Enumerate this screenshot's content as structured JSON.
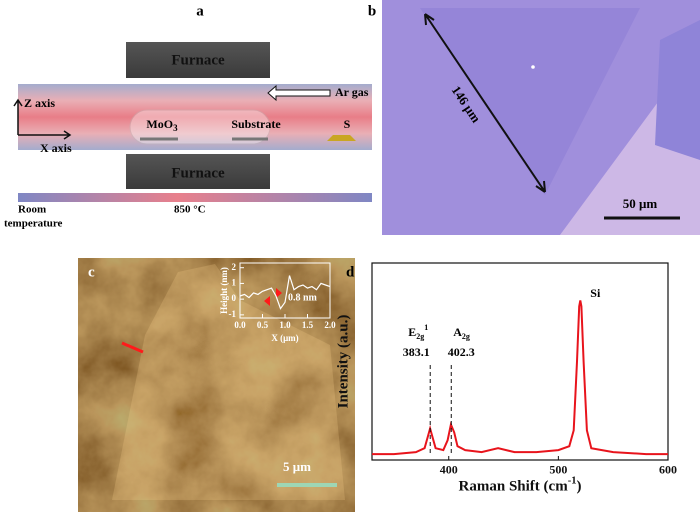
{
  "panel_a": {
    "label": "a",
    "furnace_top": "Furnace",
    "furnace_bottom": "Furnace",
    "gas": "Ar gas",
    "z_axis": "Z axis",
    "x_axis": "X axis",
    "precursor": {
      "base": "MoO",
      "sub": "3"
    },
    "substrate": "Substrate",
    "sulfur": "S",
    "room_temperature": [
      "Room",
      "temperature"
    ],
    "hot_zone": "850 °C"
  },
  "panel_b": {
    "label": "b",
    "flake_size": "146 μm",
    "scale_bar": "50 μm"
  },
  "panel_c": {
    "label": "c",
    "scale_bar": "5 μm"
  },
  "panel_d": {
    "label": "d"
  },
  "chart_data": [
    {
      "type": "line",
      "color": "#ffffff",
      "x_label": "X (μm)",
      "y_label": "Height (nm)",
      "annotation": "0.8 nm",
      "x": [
        0,
        0.1,
        0.2,
        0.3,
        0.4,
        0.5,
        0.6,
        0.7,
        0.8,
        0.9,
        1.0,
        1.1,
        1.2,
        1.3,
        1.4,
        1.5,
        1.6,
        1.7,
        1.8,
        1.9,
        2.0
      ],
      "values": [
        0.2,
        0.3,
        0.1,
        0.4,
        0.3,
        0.5,
        0.6,
        0.7,
        0.2,
        -0.6,
        -0.2,
        1.5,
        0.6,
        0.8,
        0.9,
        0.7,
        0.8,
        0.6,
        1.0,
        0.9,
        0.8
      ],
      "xlim": [
        0,
        2
      ],
      "xticks": [
        {
          "value": 0,
          "label": "0.0"
        },
        0.5,
        {
          "value": 1,
          "label": "1.0"
        },
        1.5,
        {
          "value": 2,
          "label": "2.0"
        }
      ],
      "ylim": [
        -1.2,
        2.3
      ],
      "yticks": [
        -1,
        0,
        1,
        2
      ]
    },
    {
      "type": "line",
      "color": "#e8141c",
      "x_label": {
        "base": "Raman Shift (cm",
        "sup": "-1",
        "end": ")"
      },
      "y_label": "Intensity (a.u.)",
      "annotation": "Si",
      "x": [
        330,
        350,
        370,
        378,
        381,
        383,
        385,
        388,
        395,
        399,
        402,
        405,
        408,
        415,
        430,
        445,
        460,
        480,
        500,
        510,
        514,
        517,
        519,
        520,
        521,
        523,
        526,
        530,
        550,
        580,
        600
      ],
      "values": [
        0.03,
        0.03,
        0.04,
        0.06,
        0.12,
        0.16,
        0.12,
        0.06,
        0.05,
        0.1,
        0.18,
        0.14,
        0.07,
        0.05,
        0.04,
        0.06,
        0.04,
        0.04,
        0.05,
        0.07,
        0.15,
        0.5,
        0.78,
        0.81,
        0.78,
        0.5,
        0.15,
        0.06,
        0.04,
        0.03,
        0.03
      ],
      "xlim": [
        330,
        600
      ],
      "xticks": [
        400,
        500,
        600
      ],
      "ylim": [
        0,
        1
      ],
      "peak_positions": [
        383.1,
        402.3
      ],
      "peak_labels": [
        {
          "base": "E",
          "sub": "2g",
          "sup": "1"
        },
        {
          "base": "A",
          "sub": "2g"
        }
      ]
    }
  ]
}
